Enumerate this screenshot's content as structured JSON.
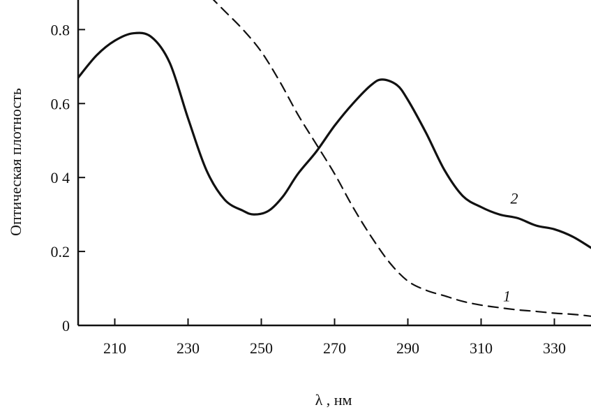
{
  "chart_data": {
    "type": "line",
    "xlabel": "λ , нм",
    "ylabel": "Оптическая   плотность",
    "xlim": [
      200,
      340
    ],
    "ylim": [
      0,
      0.88
    ],
    "x_ticks": [
      210,
      230,
      250,
      270,
      290,
      310,
      330
    ],
    "y_ticks": [
      0,
      0.2,
      0.4,
      0.6,
      0.8
    ],
    "x_tick_labels": [
      "210",
      "230",
      "250",
      "270",
      "290",
      "310",
      "330"
    ],
    "y_tick_labels": [
      "0",
      "0.2",
      "0 4",
      "0.6",
      "0.8"
    ],
    "grid": false,
    "series": [
      {
        "name": "2",
        "style": "solid",
        "color": "#111111",
        "label_at": [
          318,
          0.33
        ],
        "x": [
          200,
          205,
          210,
          215,
          220,
          225,
          230,
          235,
          240,
          245,
          248,
          252,
          256,
          260,
          265,
          270,
          275,
          280,
          283,
          287,
          290,
          295,
          300,
          305,
          310,
          315,
          320,
          325,
          330,
          335,
          340
        ],
        "y": [
          0.67,
          0.73,
          0.77,
          0.79,
          0.78,
          0.71,
          0.56,
          0.42,
          0.34,
          0.31,
          0.3,
          0.31,
          0.35,
          0.41,
          0.47,
          0.54,
          0.6,
          0.65,
          0.665,
          0.65,
          0.61,
          0.52,
          0.42,
          0.35,
          0.32,
          0.3,
          0.29,
          0.27,
          0.26,
          0.24,
          0.21
        ]
      },
      {
        "name": "1",
        "style": "dashed",
        "color": "#111111",
        "label_at": [
          316,
          0.065
        ],
        "x": [
          236,
          240,
          245,
          250,
          255,
          260,
          265,
          270,
          275,
          280,
          285,
          290,
          295,
          300,
          305,
          310,
          315,
          320,
          325,
          330,
          335,
          340
        ],
        "y": [
          0.89,
          0.85,
          0.8,
          0.74,
          0.66,
          0.57,
          0.49,
          0.41,
          0.32,
          0.24,
          0.17,
          0.12,
          0.095,
          0.08,
          0.065,
          0.055,
          0.048,
          0.042,
          0.038,
          0.033,
          0.03,
          0.025
        ]
      }
    ]
  }
}
